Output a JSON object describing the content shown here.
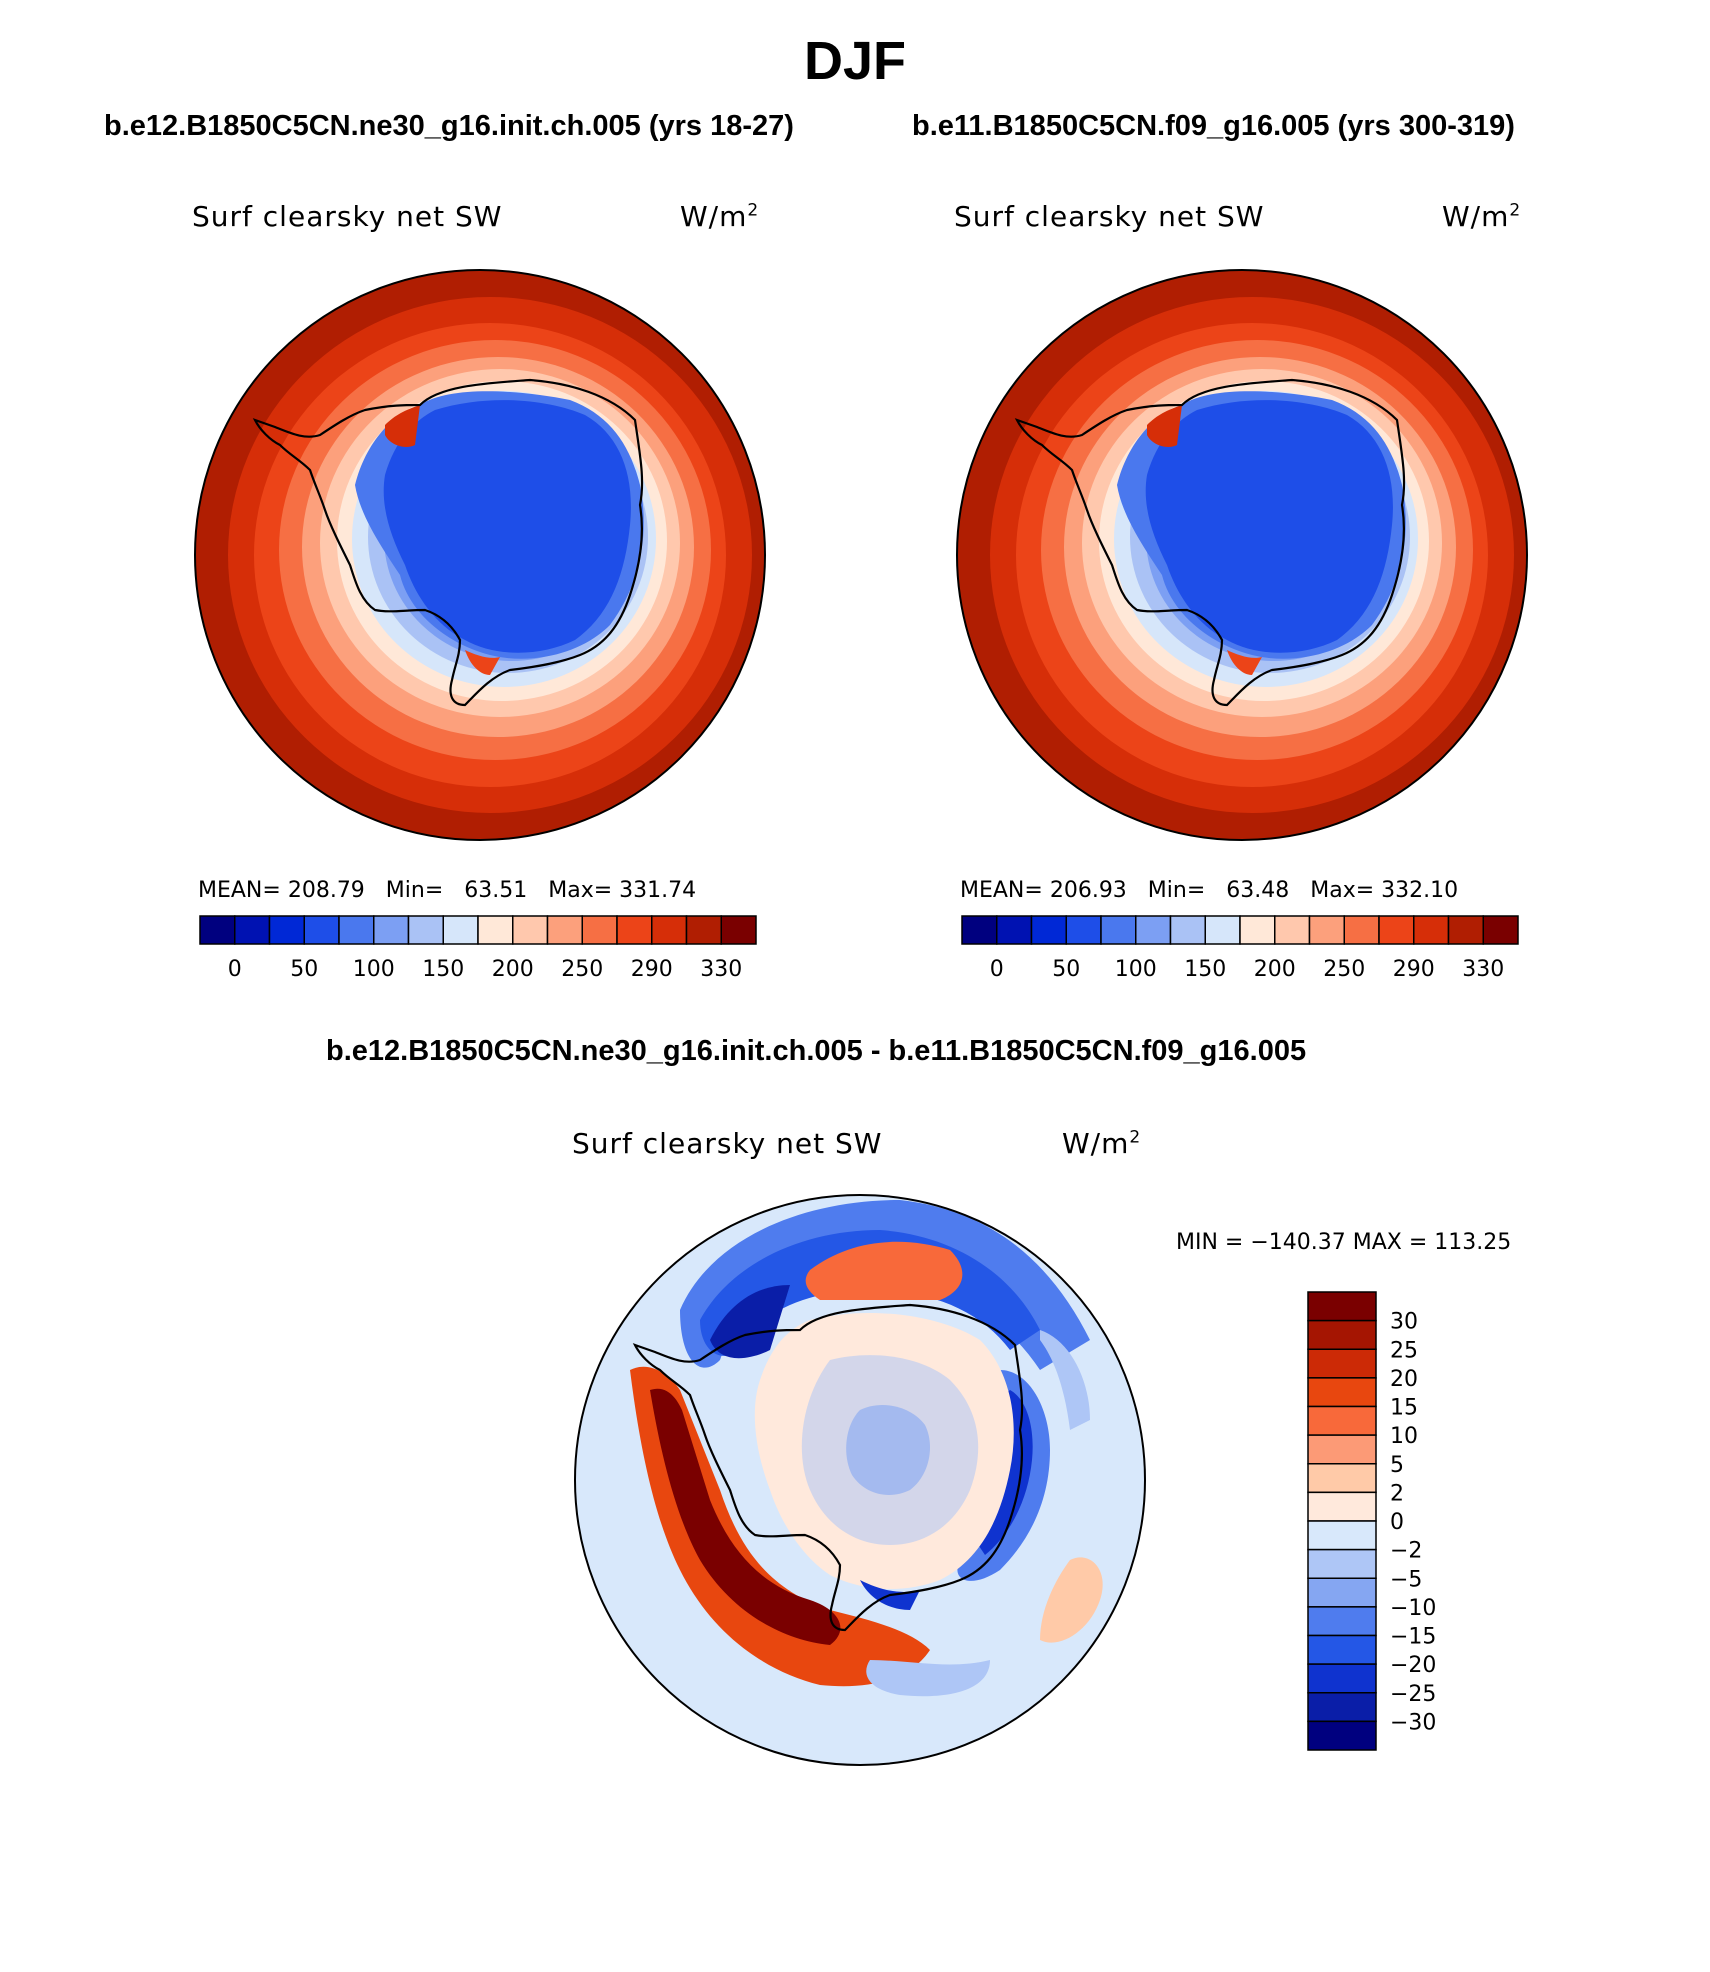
{
  "figure": {
    "title": "DJF"
  },
  "panels": [
    {
      "case_title": "b.e12.B1850C5CN.ne30_g16.init.ch.005 (yrs 18-27)",
      "variable_label": "Surf clearsky net SW",
      "units": "W/m",
      "units_sup": "2",
      "stats": {
        "mean_label": "MEAN=",
        "mean": "208.79",
        "min_label": "Min=",
        "min": "63.51",
        "max_label": "Max=",
        "max": "331.74"
      }
    },
    {
      "case_title": "b.e11.B1850C5CN.f09_g16.005 (yrs 300-319)",
      "variable_label": "Surf clearsky net SW",
      "units": "W/m",
      "units_sup": "2",
      "stats": {
        "mean_label": "MEAN=",
        "mean": "206.93",
        "min_label": "Min=",
        "min": "63.48",
        "max_label": "Max=",
        "max": "332.10"
      }
    }
  ],
  "difference": {
    "title": "b.e12.B1850C5CN.ne30_g16.init.ch.005 - b.e11.B1850C5CN.f09_g16.005",
    "variable_label": "Surf clearsky net SW",
    "units": "W/m",
    "units_sup": "2",
    "minmax": "MIN = −140.37 MAX = 113.25"
  },
  "colorbars": {
    "absolute": {
      "labels": [
        "0",
        "50",
        "100",
        "150",
        "200",
        "250",
        "290",
        "330"
      ],
      "colors": [
        "#00007f",
        "#0012b2",
        "#0028d6",
        "#1e4ee8",
        "#4a78ee",
        "#7c9ff3",
        "#aac2f5",
        "#d6e6fa",
        "#ffe8d8",
        "#ffc8ad",
        "#fca07c",
        "#f66f44",
        "#ec4418",
        "#d62e08",
        "#b01e02",
        "#7a0000"
      ]
    },
    "difference": {
      "labels": [
        "30",
        "25",
        "20",
        "15",
        "10",
        "5",
        "2",
        "0",
        "−2",
        "−5",
        "−10",
        "−15",
        "−20",
        "−25",
        "−30"
      ],
      "colors": [
        "#7a0000",
        "#a51502",
        "#cc2a06",
        "#e8470f",
        "#f8693a",
        "#fc9a76",
        "#ffcaa8",
        "#ffe9dc",
        "#d8e8fb",
        "#aec6f6",
        "#85a6f2",
        "#4f7cee",
        "#2457e6",
        "#0f33cf",
        "#0a1ea8",
        "#00007f"
      ]
    }
  }
}
